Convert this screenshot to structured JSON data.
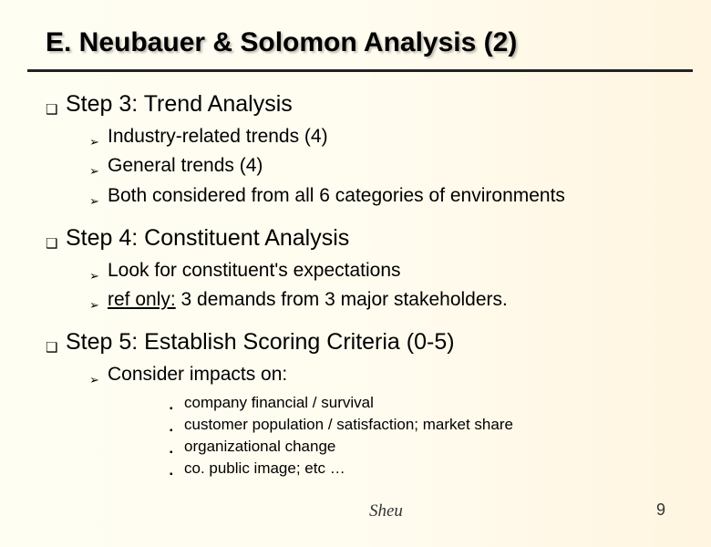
{
  "title": "E. Neubauer & Solomon Analysis (2)",
  "colors": {
    "background_left": "#fffef2",
    "background_right": "#fff5e0",
    "rule": "#222222",
    "text": "#000000",
    "footer": "#333333",
    "shadow": "rgba(0,0,0,0.25)"
  },
  "typography": {
    "title_fontsize": 30,
    "level1_fontsize": 25,
    "level2_fontsize": 21,
    "level3_fontsize": 17,
    "font_family": "Arial",
    "footer_font_family": "Times New Roman"
  },
  "bullets": {
    "level1": "❑",
    "level2": "➢",
    "level3": "▪"
  },
  "steps": [
    {
      "heading": "Step 3: Trend Analysis",
      "items": [
        {
          "text": "Industry-related trends (4)"
        },
        {
          "text": "General trends (4)"
        },
        {
          "text": "Both considered from all 6 categories of environments"
        }
      ]
    },
    {
      "heading": "Step 4: Constituent Analysis",
      "items": [
        {
          "text": "Look for constituent's expectations"
        },
        {
          "prefix_underlined": "ref only:",
          "rest": " 3 demands from 3 major stakeholders."
        }
      ]
    },
    {
      "heading": "Step 5: Establish Scoring Criteria (0-5)",
      "items": [
        {
          "text": "Consider impacts on:",
          "subitems": [
            "company financial / survival",
            "customer population / satisfaction; market share",
            "organizational change",
            "co. public image; etc …"
          ]
        }
      ]
    }
  ],
  "footer": {
    "author": "Sheu",
    "page": "9"
  }
}
